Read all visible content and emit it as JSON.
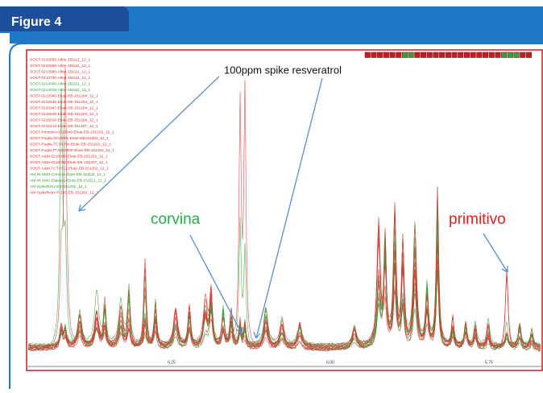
{
  "figure": {
    "title": "Figure 4",
    "annotations": {
      "spike": "100ppm spike resveratrol",
      "corvina": "corvina",
      "primitivo": "primitivo"
    },
    "x_tick_labels": [
      "6.25",
      "6.00",
      "5.75"
    ],
    "samples": [
      {
        "text": "SOST-0210555-Alkte-151111_12_1",
        "color": "#e03030"
      },
      {
        "text": "SOST-0210558-Alkte-151111_12_1",
        "color": "#e03030"
      },
      {
        "text": "SOST-0213580-Alkte-151111_12_1",
        "color": "#e03030"
      },
      {
        "text": "SOST-0213740-Alkte-151111_12_1",
        "color": "#e03030"
      },
      {
        "text": "SOST-0214000-Alkte-151111_12_1",
        "color": "#30a030"
      },
      {
        "text": "SOST-0214019-Alkte-151111_12_1",
        "color": "#30a030"
      },
      {
        "text": "SOST-0215940-Elute-EB-151204_12_1",
        "color": "#e03030"
      },
      {
        "text": "SOST-0215945-Elute-EB-151204_12_1",
        "color": "#e03030"
      },
      {
        "text": "SOST-0215947-Elute-EB-151204_12_1",
        "color": "#e03030"
      },
      {
        "text": "SOST-0215948-Elute-EB-151204_12_1",
        "color": "#e03030"
      },
      {
        "text": "SOST-0216016-Elute-EB-151204_12_1",
        "color": "#e03030"
      },
      {
        "text": "SOST-0216214-Elute-EB-151207_12_1",
        "color": "#e03030"
      },
      {
        "text": "SOST-Primitivo-0215840-Elute-EB-151202_12_1",
        "color": "#e03030"
      },
      {
        "text": "SOST-Puglia-0216001-Elute-EB151202_12_1",
        "color": "#e03030"
      },
      {
        "text": "SOST-Puglia-TCT4750-Elute-EB-151202_12_1",
        "color": "#e03030"
      },
      {
        "text": "SOST-PugliaTT-0214500-Elute-EB-151202_12_1",
        "color": "#e03030"
      },
      {
        "text": "SOST-A&M-0216030-Elute-EB-151202_12_1",
        "color": "#e03030"
      },
      {
        "text": "SOST-A&M-0216030-Elute-EB-151207_12_1",
        "color": "#e03030"
      },
      {
        "text": "SOST-A&M-TCT4712-Elute-EB-151202_12_1",
        "color": "#e03030"
      },
      {
        "text": "AM-W-SMU-Corvina-Elute-EB-151111_12_1",
        "color": "#30a030"
      },
      {
        "text": "AM-W-SMU-Dipasso-Elute-EB-151111_12_1",
        "color": "#30a030"
      },
      {
        "text": "AM-SpikeResv-EB-151202_12_1",
        "color": "#30a030"
      },
      {
        "text": "AM-SpikeResv-P-100-EB-151202_12_1",
        "color": "#e03030"
      }
    ]
  }
}
